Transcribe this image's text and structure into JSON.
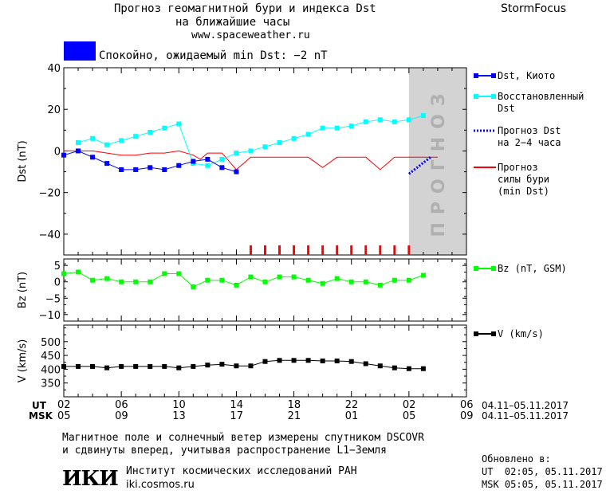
{
  "header": {
    "title_line1": "Прогноз геомагнитной бури и индекса Dst",
    "title_line2": "на ближайшие часы",
    "site": "www.spaceweather.ru",
    "brand": "StormFocus"
  },
  "status": {
    "text": "Спокойно, ожидаемый min Dst: −2 nT",
    "color": "#0000ff"
  },
  "forecast_label": "ПРОГНОЗ",
  "chart_data": [
    {
      "type": "line",
      "panel": "dst",
      "ylabel": "Dst (nT)",
      "ylim": [
        -50,
        40
      ],
      "yticks": [
        40,
        20,
        0,
        -20,
        -40
      ],
      "grid": false,
      "x": [
        2,
        3,
        4,
        5,
        6,
        7,
        8,
        9,
        10,
        11,
        12,
        13,
        14,
        15,
        16,
        17,
        18,
        19,
        20,
        21,
        22,
        23,
        24,
        25,
        26,
        27
      ],
      "series": [
        {
          "name": "Dst, Киото",
          "color": "#0000ff",
          "x": [
            2,
            3,
            4,
            5,
            6,
            7,
            8,
            9,
            10,
            11,
            12,
            13,
            14
          ],
          "values": [
            -2,
            0,
            -3,
            -6,
            -9,
            -9,
            -8,
            -9,
            -7,
            -5,
            -4,
            -8,
            -10
          ]
        },
        {
          "name": "Восстановленный Dst",
          "color": "#00ffff",
          "x": [
            3,
            4,
            5,
            6,
            7,
            8,
            9,
            10,
            11,
            12,
            13,
            14,
            15,
            16,
            17,
            18,
            19,
            20,
            21,
            22,
            23,
            24,
            25,
            26,
            27
          ],
          "values": [
            4,
            6,
            3,
            5,
            7,
            9,
            11,
            13,
            -6,
            -7,
            -4,
            -1,
            0,
            2,
            4,
            6,
            8,
            11,
            11,
            12,
            14,
            15,
            14,
            15,
            17
          ]
        },
        {
          "name": "Прогноз Dst на 2-4 часа",
          "color": "#0000ff",
          "x": [
            26,
            27.5
          ],
          "values": [
            -11,
            -3
          ]
        },
        {
          "name": "Прогноз силы бури (min Dst)",
          "color": "#ff0000",
          "x": [
            2,
            3,
            4,
            5,
            6,
            7,
            8,
            9,
            10,
            11,
            11.5,
            12,
            13,
            14,
            15,
            16,
            17,
            18,
            19,
            20,
            21,
            22,
            23,
            24,
            25,
            26,
            27,
            28
          ],
          "values": [
            0,
            0,
            0,
            -1,
            -2,
            -2,
            -1,
            -1,
            0,
            -2,
            -4,
            -1,
            -1,
            -9,
            -3,
            -3,
            -3,
            -3,
            -3,
            -8,
            -3,
            -3,
            -3,
            -9,
            -3,
            -3,
            -3,
            -3
          ]
        }
      ],
      "legend": [
        {
          "label": "Dst, Киото",
          "color": "#0000ff",
          "style": "solid-square"
        },
        {
          "label": "Восстановленный Dst",
          "color": "#00ffff",
          "style": "solid-square"
        },
        {
          "label": "Прогноз Dst на 2-4 часа",
          "color": "#0000ff",
          "style": "dotted"
        },
        {
          "label": "Прогноз силы бури (min Dst)",
          "color": "#ff0000",
          "style": "solid"
        }
      ],
      "forecast_region_start_x": 26
    },
    {
      "type": "line",
      "panel": "bz",
      "ylabel": "Bz (nT)",
      "ylim": [
        -12,
        7
      ],
      "yticks": [
        5,
        0,
        -5,
        -10
      ],
      "grid": false,
      "series": [
        {
          "name": "Bz (nT, GSM)",
          "color": "#00ff00",
          "x": [
            2,
            3,
            4,
            5,
            6,
            7,
            8,
            9,
            10,
            11,
            12,
            13,
            14,
            15,
            16,
            17,
            18,
            19,
            20,
            21,
            22,
            23,
            24,
            25,
            26,
            27
          ],
          "values": [
            2.5,
            3,
            0.5,
            1,
            0,
            0,
            0,
            2.5,
            2.5,
            -1.5,
            0.5,
            0.5,
            -1,
            1.5,
            0,
            1.5,
            1.5,
            0.5,
            -0.5,
            1,
            0,
            0,
            -1,
            0.5,
            0.5,
            2
          ]
        }
      ],
      "legend": [
        {
          "label": "Bz (nT, GSM)",
          "color": "#00ff00"
        }
      ]
    },
    {
      "type": "line",
      "panel": "v",
      "ylabel": "V (km/s)",
      "ylim": [
        300,
        560
      ],
      "yticks": [
        500,
        450,
        400,
        350
      ],
      "grid": false,
      "series": [
        {
          "name": "V (km/s)",
          "color": "#000000",
          "x": [
            2,
            3,
            4,
            5,
            6,
            7,
            8,
            9,
            10,
            11,
            12,
            13,
            14,
            15,
            16,
            17,
            18,
            19,
            20,
            21,
            22,
            23,
            24,
            25,
            26,
            27
          ],
          "values": [
            410,
            410,
            410,
            405,
            410,
            410,
            410,
            410,
            405,
            410,
            415,
            418,
            412,
            412,
            428,
            432,
            432,
            432,
            430,
            430,
            428,
            420,
            412,
            405,
            402,
            402
          ]
        }
      ],
      "legend": [
        {
          "label": "V (km/s)",
          "color": "#000000"
        }
      ]
    }
  ],
  "x_axis": {
    "ut_label": "UT",
    "msk_label": "MSK",
    "ut_ticks": [
      "02",
      "06",
      "10",
      "14",
      "18",
      "22",
      "02",
      "06"
    ],
    "msk_ticks": [
      "05",
      "09",
      "13",
      "17",
      "21",
      "01",
      "05",
      "09"
    ],
    "date_range_ut": "04.11–05.11.2017",
    "date_range_msk": "04.11–05.11.2017"
  },
  "footer": {
    "note_line1": "Магнитное поле и солнечный ветер измерены спутником DSCOVR",
    "note_line2": "и сдвинуты вперед, учитывая распространение L1−Земля",
    "institute": "Институт космических исследований РАН",
    "institute_site": "iki.cosmos.ru",
    "logo_text": "ИКИ",
    "updated_label": "Обновлено в:",
    "updated_ut": "UT  02:05, 05.11.2017",
    "updated_msk": "MSK 05:05, 05.11.2017"
  }
}
